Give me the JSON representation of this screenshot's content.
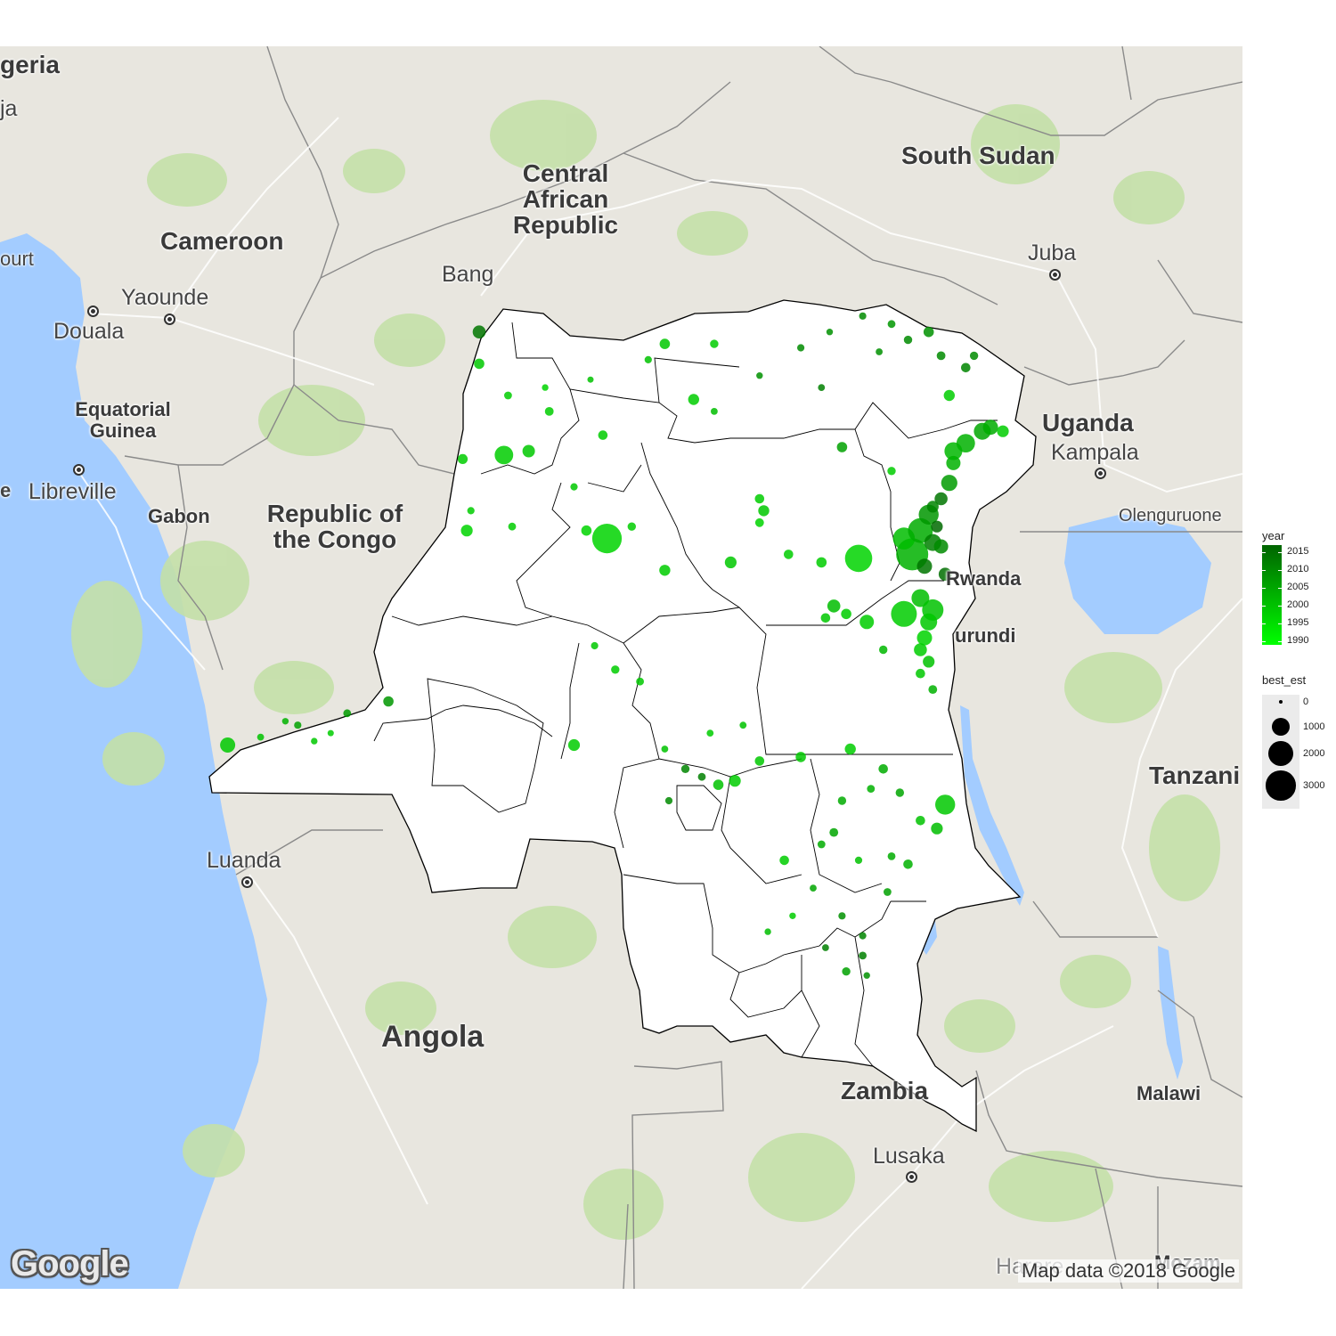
{
  "map": {
    "labels": {
      "countries": {
        "nigeria": "geria",
        "cameroon": "Cameroon",
        "car": [
          "Central",
          "African",
          "Republic"
        ],
        "south_sudan": "South Sudan",
        "uganda": "Uganda",
        "equatorial_guinea": [
          "Equatorial",
          "Guinea"
        ],
        "gabon": "Gabon",
        "congo": [
          "Republic of",
          "the Congo"
        ],
        "rwanda": "Rwanda",
        "burundi": "urundi",
        "tanzania": "Tanzani",
        "angola": "Angola",
        "zambia": "Zambia",
        "malawi": "Malawi",
        "mozambique": "Mozam"
      },
      "cities": {
        "abuja": "ja",
        "court": "ourt",
        "yaounde": "Yaounde",
        "douala": "Douala",
        "libreville": "Libreville",
        "e_fragment": "e",
        "bangui": "Bang",
        "juba": "Juba",
        "kampala": "Kampala",
        "olenguruone": "Olenguruone",
        "luanda": "Luanda",
        "lusaka": "Lusaka",
        "harare": "Harare"
      }
    },
    "attribution": {
      "logo": "Google",
      "credit": "Map data ©2018 Google"
    },
    "colors": {
      "water": "#a3ccff",
      "land": "#e8e6df",
      "vegetation": "#c4e0a8",
      "drc_fill": "#ffffff",
      "drc_outline": "#000000"
    }
  },
  "legend": {
    "year": {
      "title": "year",
      "ticks": [
        "2015",
        "2010",
        "2005",
        "2000",
        "1995",
        "1990"
      ],
      "color_new": "#006400",
      "color_old": "#00ff00"
    },
    "best_est": {
      "title": "best_est",
      "breaks": [
        "0",
        "1000",
        "2000",
        "3000"
      ]
    }
  },
  "chart_data": {
    "type": "scatter",
    "title": "",
    "color_by": "year",
    "size_by": "best_est",
    "year_range": [
      1989,
      2017
    ],
    "best_est_range": [
      0,
      3600
    ],
    "points": [
      {
        "lon": 18.6,
        "lat": 4.4,
        "year": 2014,
        "best_est": 400
      },
      {
        "lon": 18.6,
        "lat": 3.6,
        "year": 1999,
        "best_est": 200
      },
      {
        "lon": 19.3,
        "lat": 2.8,
        "year": 1998,
        "best_est": 80
      },
      {
        "lon": 20.3,
        "lat": 2.4,
        "year": 1998,
        "best_est": 120
      },
      {
        "lon": 20.2,
        "lat": 3.0,
        "year": 1997,
        "best_est": 40
      },
      {
        "lon": 21.3,
        "lat": 3.2,
        "year": 2000,
        "best_est": 30
      },
      {
        "lon": 22.7,
        "lat": 3.7,
        "year": 2000,
        "best_est": 60
      },
      {
        "lon": 23.1,
        "lat": 4.1,
        "year": 1999,
        "best_est": 200
      },
      {
        "lon": 23.8,
        "lat": 2.7,
        "year": 1998,
        "best_est": 250
      },
      {
        "lon": 24.3,
        "lat": 2.4,
        "year": 2001,
        "best_est": 50
      },
      {
        "lon": 21.6,
        "lat": 1.8,
        "year": 1998,
        "best_est": 150
      },
      {
        "lon": 18.2,
        "lat": 1.2,
        "year": 1998,
        "best_est": 180
      },
      {
        "lon": 19.2,
        "lat": 1.3,
        "year": 1998,
        "best_est": 1000
      },
      {
        "lon": 19.8,
        "lat": 1.4,
        "year": 1999,
        "best_est": 350
      },
      {
        "lon": 20.9,
        "lat": 0.5,
        "year": 1999,
        "best_est": 60
      },
      {
        "lon": 18.4,
        "lat": -0.1,
        "year": 1998,
        "best_est": 60
      },
      {
        "lon": 18.3,
        "lat": -0.6,
        "year": 1997,
        "best_est": 300
      },
      {
        "lon": 19.4,
        "lat": -0.5,
        "year": 1998,
        "best_est": 80
      },
      {
        "lon": 21.2,
        "lat": -0.6,
        "year": 1997,
        "best_est": 200
      },
      {
        "lon": 21.7,
        "lat": -0.8,
        "year": 1997,
        "best_est": 3000
      },
      {
        "lon": 22.3,
        "lat": -0.5,
        "year": 1998,
        "best_est": 100
      },
      {
        "lon": 23.1,
        "lat": -1.6,
        "year": 1998,
        "best_est": 250
      },
      {
        "lon": 24.7,
        "lat": -1.4,
        "year": 1999,
        "best_est": 300
      },
      {
        "lon": 25.4,
        "lat": 0.2,
        "year": 1998,
        "best_est": 150
      },
      {
        "lon": 25.5,
        "lat": -0.1,
        "year": 1999,
        "best_est": 250
      },
      {
        "lon": 25.4,
        "lat": -0.4,
        "year": 1997,
        "best_est": 120
      },
      {
        "lon": 26.1,
        "lat": -1.2,
        "year": 1998,
        "best_est": 150
      },
      {
        "lon": 26.9,
        "lat": -1.4,
        "year": 1998,
        "best_est": 200
      },
      {
        "lon": 27.8,
        "lat": -1.3,
        "year": 1997,
        "best_est": 2500
      },
      {
        "lon": 27.4,
        "lat": 1.5,
        "year": 2006,
        "best_est": 200
      },
      {
        "lon": 28.6,
        "lat": 0.9,
        "year": 1998,
        "best_est": 100
      },
      {
        "lon": 29.1,
        "lat": -1.2,
        "year": 2003,
        "best_est": 3600
      },
      {
        "lon": 28.9,
        "lat": -0.8,
        "year": 2001,
        "best_est": 1500
      },
      {
        "lon": 29.3,
        "lat": -0.6,
        "year": 2004,
        "best_est": 2000
      },
      {
        "lon": 29.5,
        "lat": -0.2,
        "year": 2008,
        "best_est": 1200
      },
      {
        "lon": 29.6,
        "lat": -0.9,
        "year": 2012,
        "best_est": 800
      },
      {
        "lon": 29.4,
        "lat": -1.5,
        "year": 2014,
        "best_est": 600
      },
      {
        "lon": 29.8,
        "lat": -1.0,
        "year": 2010,
        "best_est": 500
      },
      {
        "lon": 29.9,
        "lat": -1.7,
        "year": 2015,
        "best_est": 400
      },
      {
        "lon": 29.7,
        "lat": -0.5,
        "year": 2016,
        "best_est": 300
      },
      {
        "lon": 29.3,
        "lat": -2.3,
        "year": 2001,
        "best_est": 900
      },
      {
        "lon": 29.6,
        "lat": -2.6,
        "year": 2000,
        "best_est": 1400
      },
      {
        "lon": 28.9,
        "lat": -2.7,
        "year": 1998,
        "best_est": 2200
      },
      {
        "lon": 29.5,
        "lat": -2.9,
        "year": 1999,
        "best_est": 800
      },
      {
        "lon": 29.4,
        "lat": -3.3,
        "year": 1997,
        "best_est": 600
      },
      {
        "lon": 29.3,
        "lat": -3.6,
        "year": 1998,
        "best_est": 400
      },
      {
        "lon": 29.5,
        "lat": -3.9,
        "year": 2000,
        "best_est": 300
      },
      {
        "lon": 29.3,
        "lat": -4.2,
        "year": 1999,
        "best_est": 150
      },
      {
        "lon": 29.6,
        "lat": -4.6,
        "year": 2003,
        "best_est": 120
      },
      {
        "lon": 27.5,
        "lat": -2.7,
        "year": 1998,
        "best_est": 200
      },
      {
        "lon": 27.2,
        "lat": -2.5,
        "year": 2001,
        "best_est": 400
      },
      {
        "lon": 27.0,
        "lat": -2.8,
        "year": 1999,
        "best_est": 150
      },
      {
        "lon": 28.0,
        "lat": -2.9,
        "year": 1998,
        "best_est": 500
      },
      {
        "lon": 28.4,
        "lat": -3.6,
        "year": 2002,
        "best_est": 100
      },
      {
        "lon": 30.1,
        "lat": 1.4,
        "year": 2002,
        "best_est": 900
      },
      {
        "lon": 30.4,
        "lat": 1.6,
        "year": 2003,
        "best_est": 1000
      },
      {
        "lon": 30.8,
        "lat": 1.9,
        "year": 2005,
        "best_est": 800
      },
      {
        "lon": 31.0,
        "lat": 2.0,
        "year": 2004,
        "best_est": 600
      },
      {
        "lon": 31.3,
        "lat": 1.9,
        "year": 1998,
        "best_est": 300
      },
      {
        "lon": 30.1,
        "lat": 1.1,
        "year": 2003,
        "best_est": 500
      },
      {
        "lon": 30.0,
        "lat": 0.6,
        "year": 2007,
        "best_est": 700
      },
      {
        "lon": 29.8,
        "lat": 0.2,
        "year": 2014,
        "best_est": 400
      },
      {
        "lon": 29.6,
        "lat": 0.0,
        "year": 2011,
        "best_est": 300
      },
      {
        "lon": 29.5,
        "lat": 4.4,
        "year": 2009,
        "best_est": 200
      },
      {
        "lon": 29.0,
        "lat": 4.2,
        "year": 2010,
        "best_est": 100
      },
      {
        "lon": 28.6,
        "lat": 4.6,
        "year": 2008,
        "best_est": 80
      },
      {
        "lon": 27.9,
        "lat": 4.8,
        "year": 2010,
        "best_est": 60
      },
      {
        "lon": 28.3,
        "lat": 3.9,
        "year": 2009,
        "best_est": 50
      },
      {
        "lon": 29.8,
        "lat": 3.8,
        "year": 2010,
        "best_est": 120
      },
      {
        "lon": 30.4,
        "lat": 3.5,
        "year": 2011,
        "best_est": 150
      },
      {
        "lon": 30.6,
        "lat": 3.8,
        "year": 2010,
        "best_est": 100
      },
      {
        "lon": 30.0,
        "lat": 2.8,
        "year": 1998,
        "best_est": 250
      },
      {
        "lon": 27.1,
        "lat": 4.4,
        "year": 2009,
        "best_est": 40
      },
      {
        "lon": 26.4,
        "lat": 4.0,
        "year": 2010,
        "best_est": 60
      },
      {
        "lon": 26.9,
        "lat": 3.0,
        "year": 2012,
        "best_est": 50
      },
      {
        "lon": 25.4,
        "lat": 3.3,
        "year": 2009,
        "best_est": 40
      },
      {
        "lon": 24.3,
        "lat": 4.1,
        "year": 1998,
        "best_est": 100
      },
      {
        "lon": 16.4,
        "lat": -4.9,
        "year": 2008,
        "best_est": 200
      },
      {
        "lon": 15.4,
        "lat": -5.2,
        "year": 2007,
        "best_est": 80
      },
      {
        "lon": 14.2,
        "lat": -5.5,
        "year": 2006,
        "best_est": 60
      },
      {
        "lon": 13.3,
        "lat": -5.8,
        "year": 2000,
        "best_est": 50
      },
      {
        "lon": 12.5,
        "lat": -6.0,
        "year": 1999,
        "best_est": 600
      },
      {
        "lon": 14.6,
        "lat": -5.9,
        "year": 1999,
        "best_est": 40
      },
      {
        "lon": 13.9,
        "lat": -5.4,
        "year": 2003,
        "best_est": 40
      },
      {
        "lon": 15.0,
        "lat": -5.7,
        "year": 1998,
        "best_est": 30
      },
      {
        "lon": 20.9,
        "lat": -6.0,
        "year": 1998,
        "best_est": 300
      },
      {
        "lon": 21.9,
        "lat": -4.1,
        "year": 1998,
        "best_est": 100
      },
      {
        "lon": 21.4,
        "lat": -3.5,
        "year": 1999,
        "best_est": 60
      },
      {
        "lon": 22.5,
        "lat": -4.4,
        "year": 1999,
        "best_est": 80
      },
      {
        "lon": 23.1,
        "lat": -6.1,
        "year": 2000,
        "best_est": 50
      },
      {
        "lon": 23.6,
        "lat": -6.6,
        "year": 2011,
        "best_est": 100
      },
      {
        "lon": 24.0,
        "lat": -6.8,
        "year": 2012,
        "best_est": 80
      },
      {
        "lon": 24.4,
        "lat": -7.0,
        "year": 2000,
        "best_est": 200
      },
      {
        "lon": 24.8,
        "lat": -6.9,
        "year": 1998,
        "best_est": 300
      },
      {
        "lon": 25.4,
        "lat": -6.4,
        "year": 1999,
        "best_est": 150
      },
      {
        "lon": 23.2,
        "lat": -7.4,
        "year": 2010,
        "best_est": 60
      },
      {
        "lon": 24.2,
        "lat": -5.7,
        "year": 1998,
        "best_est": 50
      },
      {
        "lon": 25.0,
        "lat": -5.5,
        "year": 2000,
        "best_est": 50
      },
      {
        "lon": 26.4,
        "lat": -6.3,
        "year": 1999,
        "best_est": 200
      },
      {
        "lon": 27.6,
        "lat": -6.1,
        "year": 1998,
        "best_est": 250
      },
      {
        "lon": 28.4,
        "lat": -6.6,
        "year": 2004,
        "best_est": 150
      },
      {
        "lon": 28.8,
        "lat": -7.2,
        "year": 2005,
        "best_est": 100
      },
      {
        "lon": 29.9,
        "lat": -7.5,
        "year": 1999,
        "best_est": 1200
      },
      {
        "lon": 29.7,
        "lat": -8.1,
        "year": 2001,
        "best_est": 300
      },
      {
        "lon": 29.3,
        "lat": -7.9,
        "year": 2000,
        "best_est": 150
      },
      {
        "lon": 28.1,
        "lat": -7.1,
        "year": 2003,
        "best_est": 80
      },
      {
        "lon": 27.4,
        "lat": -7.4,
        "year": 2004,
        "best_est": 100
      },
      {
        "lon": 27.2,
        "lat": -8.2,
        "year": 2005,
        "best_est": 120
      },
      {
        "lon": 28.6,
        "lat": -8.8,
        "year": 2004,
        "best_est": 80
      },
      {
        "lon": 29.0,
        "lat": -9.0,
        "year": 2003,
        "best_est": 150
      },
      {
        "lon": 28.5,
        "lat": -9.7,
        "year": 2006,
        "best_est": 80
      },
      {
        "lon": 27.8,
        "lat": -8.9,
        "year": 2000,
        "best_est": 60
      },
      {
        "lon": 26.9,
        "lat": -8.5,
        "year": 2004,
        "best_est": 80
      },
      {
        "lon": 26.0,
        "lat": -8.9,
        "year": 1998,
        "best_est": 150
      },
      {
        "lon": 26.7,
        "lat": -9.6,
        "year": 2005,
        "best_est": 50
      },
      {
        "lon": 27.4,
        "lat": -10.3,
        "year": 2009,
        "best_est": 60
      },
      {
        "lon": 27.9,
        "lat": -10.8,
        "year": 2011,
        "best_est": 60
      },
      {
        "lon": 27.5,
        "lat": -11.7,
        "year": 2006,
        "best_est": 100
      },
      {
        "lon": 27.9,
        "lat": -11.3,
        "year": 2012,
        "best_est": 80
      },
      {
        "lon": 26.2,
        "lat": -10.3,
        "year": 1998,
        "best_est": 40
      },
      {
        "lon": 25.6,
        "lat": -10.7,
        "year": 2001,
        "best_est": 40
      },
      {
        "lon": 27.0,
        "lat": -11.1,
        "year": 2012,
        "best_est": 50
      },
      {
        "lon": 28.0,
        "lat": -11.8,
        "year": 2009,
        "best_est": 40
      }
    ]
  }
}
